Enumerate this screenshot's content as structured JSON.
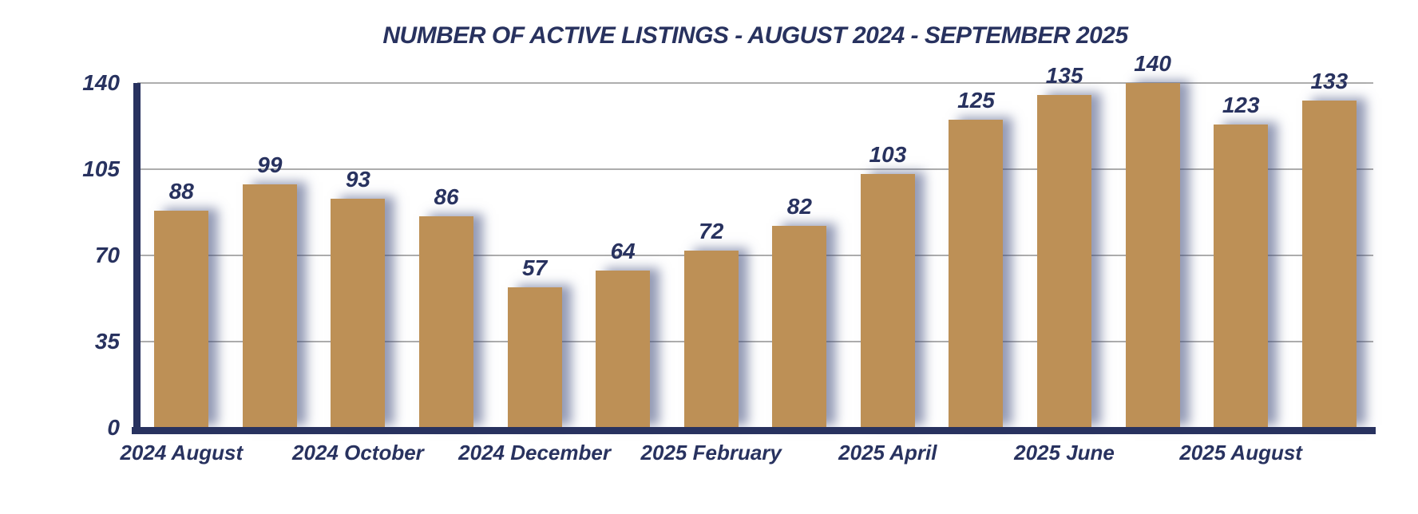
{
  "title": "NUMBER OF ACTIVE LISTINGS - AUGUST 2024 - SEPTEMBER 2025",
  "chart_data": {
    "type": "bar",
    "title": "NUMBER OF ACTIVE LISTINGS - AUGUST 2024 - SEPTEMBER 2025",
    "categories": [
      "2024 August",
      "",
      "2024 October",
      "",
      "2024 December",
      "",
      "2025 February",
      "",
      "2025 April",
      "",
      "2025 June",
      "",
      "2025 August",
      ""
    ],
    "values": [
      88,
      99,
      93,
      86,
      57,
      64,
      72,
      82,
      103,
      125,
      135,
      140,
      123,
      133
    ],
    "y_ticks": [
      0,
      35,
      70,
      105,
      140
    ],
    "ylim": [
      0,
      140
    ],
    "grid": true,
    "legend": "none",
    "bar_color": "#bd9056",
    "axis_color": "#28325f",
    "text_color": "#28325f",
    "gridline_color": "#adadad"
  }
}
